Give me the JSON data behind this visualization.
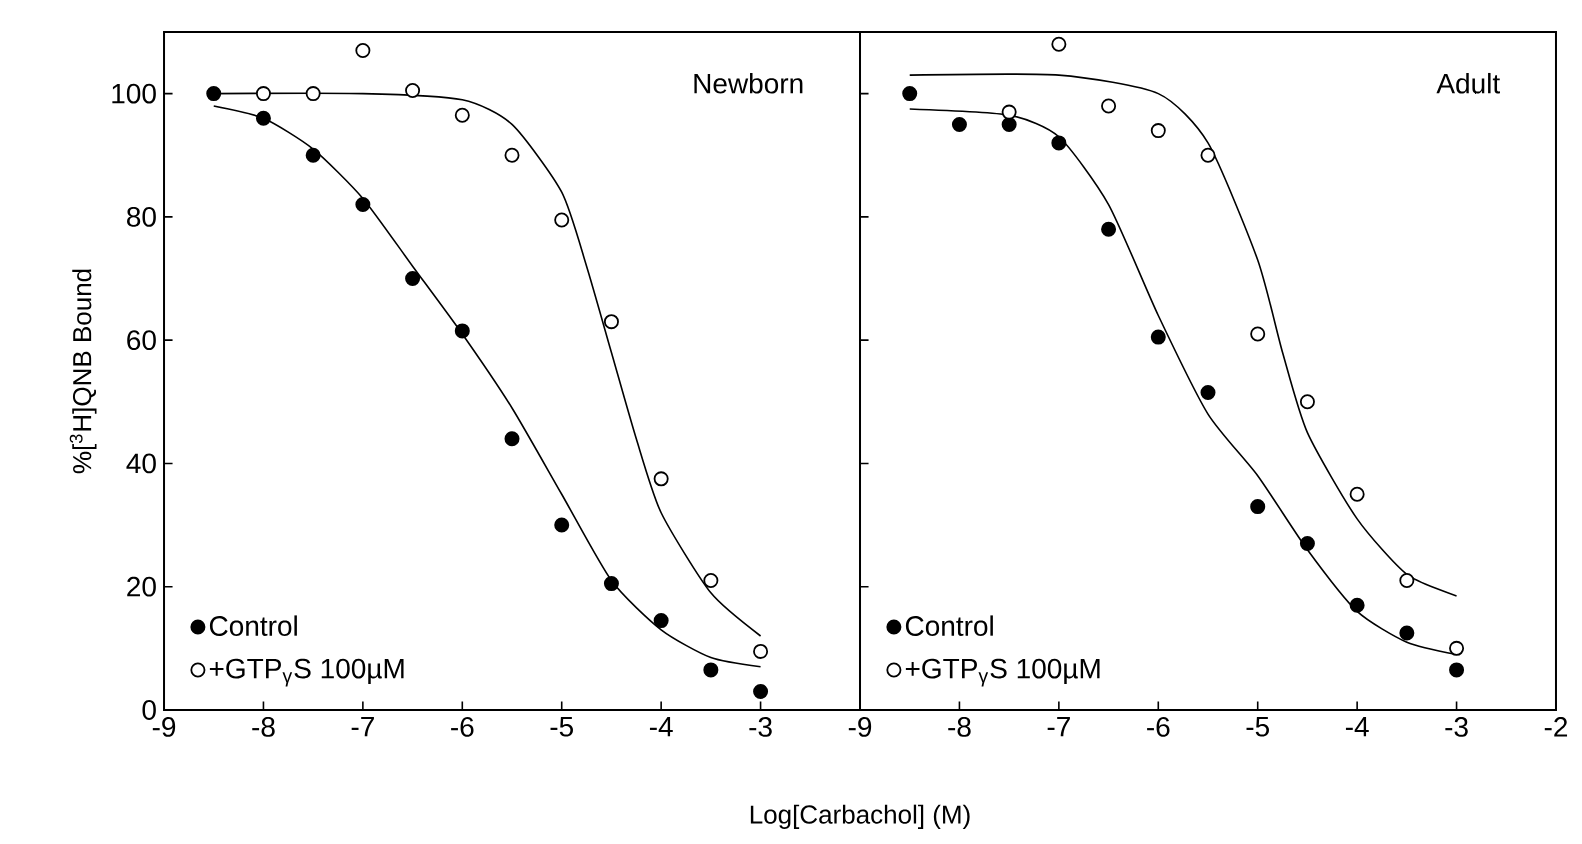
{
  "chart_data": [
    {
      "type": "scatter",
      "ylabel": "%[$^{3}$H]QNB Bound",
      "xlabel": "Log[Carbachol] (M)",
      "xlim": [
        -9,
        -2
      ],
      "ylim": [
        0,
        110
      ],
      "xticks": [
        -9,
        -8,
        -7,
        -6,
        -5,
        -4,
        -3
      ],
      "yticks": [
        0,
        20,
        40,
        60,
        80,
        100
      ],
      "legend": "bottom left",
      "marker": "circle",
      "annotations": [
        "Newborn"
      ],
      "series": [
        {
          "name": "Control",
          "color": "#000000",
          "x": [
            -8.5,
            -8,
            -7.5,
            -7,
            -6.5,
            -6,
            -5.5,
            -5,
            -4.5,
            -4,
            -3.5,
            -3
          ],
          "values": [
            100,
            96,
            90,
            82,
            70,
            61.5,
            44,
            30,
            20.5,
            14.5,
            6.5,
            3
          ]
        },
        {
          "name": "+GTP$_{γ}$S  100µM",
          "color": "#ffffff",
          "x": [
            -8,
            -7.5,
            -7,
            -6.5,
            -6,
            -5.5,
            -5,
            -4.5,
            -4,
            -3.5,
            -3
          ],
          "values": [
            100,
            100,
            107,
            100.5,
            96.5,
            90,
            79.5,
            63,
            37.5,
            21,
            9.5
          ]
        },
        {
          "type": "line",
          "marker": "none",
          "color": "#000000",
          "x": [
            -8.5,
            -8,
            -7.5,
            -7,
            -6.5,
            -6,
            -5.5,
            -5,
            -4.5,
            -4,
            -3.5,
            -3
          ],
          "values": [
            98,
            96,
            91,
            83,
            72,
            61,
            49,
            35,
            21,
            13,
            8.5,
            7
          ]
        },
        {
          "type": "line",
          "marker": "none",
          "color": "#000000",
          "x": [
            -8.5,
            -7,
            -6,
            -5.5,
            -5,
            -4.75,
            -4.5,
            -4.25,
            -4,
            -3.5,
            -3
          ],
          "values": [
            100,
            100,
            99,
            95,
            84,
            72,
            58,
            44,
            32,
            19,
            12
          ]
        }
      ]
    },
    {
      "type": "scatter",
      "xlim": [
        -9,
        -2
      ],
      "ylim": [
        0,
        110
      ],
      "xticks": [
        -9,
        -8,
        -7,
        -6,
        -5,
        -4,
        -3,
        -2
      ],
      "yticks": [
        0,
        20,
        40,
        60,
        80,
        100
      ],
      "tick_labels": "x",
      "legend": "bottom left",
      "marker": "circle",
      "annotations": [
        "Adult"
      ],
      "series": [
        {
          "name": "Control",
          "color": "#000000",
          "x": [
            -8.5,
            -8,
            -7.5,
            -7,
            -6.5,
            -6,
            -5.5,
            -5,
            -4.5,
            -4,
            -3.5,
            -3
          ],
          "values": [
            100,
            95,
            95,
            92,
            78,
            60.5,
            51.5,
            33,
            27,
            17,
            12.5,
            6.5
          ]
        },
        {
          "name": "+GTP$_{γ}$S  100µM",
          "color": "#ffffff",
          "x": [
            -7.5,
            -7,
            -6.5,
            -6,
            -5.5,
            -5,
            -4.5,
            -4,
            -3.5,
            -3
          ],
          "values": [
            97,
            108,
            98,
            94,
            90,
            61,
            50,
            35,
            21,
            10
          ]
        },
        {
          "type": "line",
          "marker": "none",
          "color": "#000000",
          "x": [
            -8.5,
            -7.5,
            -7,
            -6.5,
            -6,
            -5.5,
            -5,
            -4.5,
            -4,
            -3.5,
            -3
          ],
          "values": [
            97.5,
            96.5,
            93,
            82,
            64,
            48,
            38,
            26,
            16,
            11,
            9
          ]
        },
        {
          "type": "line",
          "marker": "none",
          "color": "#000000",
          "x": [
            -8.5,
            -7,
            -6,
            -5.5,
            -5,
            -4.75,
            -4.5,
            -4,
            -3.5,
            -3
          ],
          "values": [
            103,
            103,
            100,
            92,
            73,
            58,
            45,
            31,
            22,
            18.5
          ]
        }
      ]
    }
  ]
}
